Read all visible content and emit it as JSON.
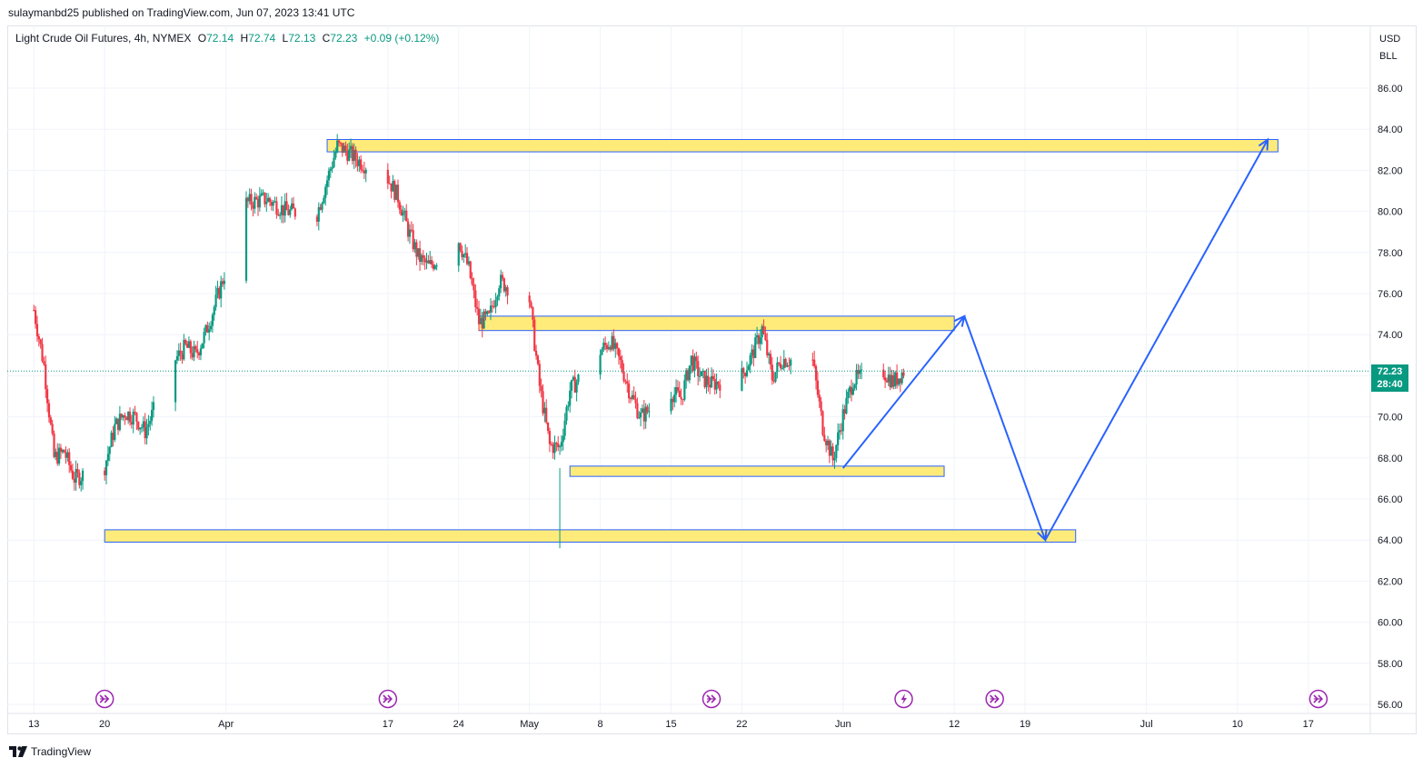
{
  "publish_line": "sulaymanbd25 published on TradingView.com, Jun 07, 2023 13:41 UTC",
  "legend": {
    "symbol": "Light Crude Oil Futures, 4h, NYMEX",
    "o_label": "O",
    "o": "72.14",
    "h_label": "H",
    "h": "72.74",
    "l_label": "L",
    "l": "72.13",
    "c_label": "C",
    "c": "72.23",
    "change": "+0.09 (+0.12%)"
  },
  "price_axis": {
    "currency": "USD",
    "unit": "BLL",
    "current_price": "72.23",
    "countdown": "28:40",
    "ticks": [
      "86.00",
      "84.00",
      "82.00",
      "80.00",
      "78.00",
      "76.00",
      "74.00",
      "72.00",
      "70.00",
      "68.00",
      "66.00",
      "64.00",
      "62.00",
      "60.00",
      "58.00",
      "56.00"
    ]
  },
  "time_axis": {
    "ticks": [
      "13",
      "20",
      "Apr",
      "17",
      "24",
      "May",
      "8",
      "15",
      "22",
      "Jun",
      "12",
      "19",
      "Jul",
      "10",
      "17"
    ]
  },
  "footer": {
    "brand": "TradingView"
  },
  "colors": {
    "up": "#089981",
    "down": "#f23645",
    "zone_fill": "#ffeb7a",
    "zone_border": "#2962ff",
    "arrow": "#2962ff",
    "event_icon": "#9c27b0"
  },
  "chart_data": {
    "type": "candlestick",
    "title": "Light Crude Oil Futures, 4h, NYMEX",
    "ylim": [
      55.5,
      87.5
    ],
    "xlim": [
      "2023-03-12",
      "2023-07-20"
    ],
    "grid": true,
    "approx_close_path": [
      {
        "x": "2023-03-13",
        "y": 75.2
      },
      {
        "x": "2023-03-14",
        "y": 72.5
      },
      {
        "x": "2023-03-15",
        "y": 68.0
      },
      {
        "x": "2023-03-16",
        "y": 68.3
      },
      {
        "x": "2023-03-17",
        "y": 67.0
      },
      {
        "x": "2023-03-20",
        "y": 67.6
      },
      {
        "x": "2023-03-21",
        "y": 69.5
      },
      {
        "x": "2023-03-22",
        "y": 70.2
      },
      {
        "x": "2023-03-23",
        "y": 70.0
      },
      {
        "x": "2023-03-24",
        "y": 69.3
      },
      {
        "x": "2023-03-27",
        "y": 72.8
      },
      {
        "x": "2023-03-28",
        "y": 73.4
      },
      {
        "x": "2023-03-29",
        "y": 73.0
      },
      {
        "x": "2023-03-30",
        "y": 74.1
      },
      {
        "x": "2023-03-31",
        "y": 75.6
      },
      {
        "x": "2023-04-03",
        "y": 80.4
      },
      {
        "x": "2023-04-05",
        "y": 80.6
      },
      {
        "x": "2023-04-07",
        "y": 80.0
      },
      {
        "x": "2023-04-10",
        "y": 79.9
      },
      {
        "x": "2023-04-12",
        "y": 83.2
      },
      {
        "x": "2023-04-13",
        "y": 82.9
      },
      {
        "x": "2023-04-14",
        "y": 82.5
      },
      {
        "x": "2023-04-17",
        "y": 81.6
      },
      {
        "x": "2023-04-18",
        "y": 80.7
      },
      {
        "x": "2023-04-19",
        "y": 79.1
      },
      {
        "x": "2023-04-20",
        "y": 77.8
      },
      {
        "x": "2023-04-21",
        "y": 77.3
      },
      {
        "x": "2023-04-24",
        "y": 78.6
      },
      {
        "x": "2023-04-25",
        "y": 77.2
      },
      {
        "x": "2023-04-26",
        "y": 74.6
      },
      {
        "x": "2023-04-27",
        "y": 74.8
      },
      {
        "x": "2023-04-28",
        "y": 76.6
      },
      {
        "x": "2023-05-01",
        "y": 75.7
      },
      {
        "x": "2023-05-02",
        "y": 71.5
      },
      {
        "x": "2023-05-03",
        "y": 68.6
      },
      {
        "x": "2023-05-04",
        "y": 68.5
      },
      {
        "x": "2023-05-05",
        "y": 71.3
      },
      {
        "x": "2023-05-08",
        "y": 73.2
      },
      {
        "x": "2023-05-09",
        "y": 73.7
      },
      {
        "x": "2023-05-10",
        "y": 72.6
      },
      {
        "x": "2023-05-11",
        "y": 71.1
      },
      {
        "x": "2023-05-12",
        "y": 70.0
      },
      {
        "x": "2023-05-15",
        "y": 71.2
      },
      {
        "x": "2023-05-16",
        "y": 70.9
      },
      {
        "x": "2023-05-17",
        "y": 72.8
      },
      {
        "x": "2023-05-18",
        "y": 71.9
      },
      {
        "x": "2023-05-19",
        "y": 71.6
      },
      {
        "x": "2023-05-22",
        "y": 72.0
      },
      {
        "x": "2023-05-23",
        "y": 73.0
      },
      {
        "x": "2023-05-24",
        "y": 74.3
      },
      {
        "x": "2023-05-25",
        "y": 71.9
      },
      {
        "x": "2023-05-26",
        "y": 72.8
      },
      {
        "x": "2023-05-29",
        "y": 72.7
      },
      {
        "x": "2023-05-30",
        "y": 69.5
      },
      {
        "x": "2023-05-31",
        "y": 67.9
      },
      {
        "x": "2023-06-01",
        "y": 70.1
      },
      {
        "x": "2023-06-02",
        "y": 71.8
      },
      {
        "x": "2023-06-05",
        "y": 72.2
      },
      {
        "x": "2023-06-06",
        "y": 71.7
      },
      {
        "x": "2023-06-07",
        "y": 72.23
      }
    ],
    "last": {
      "open": 72.14,
      "high": 72.74,
      "low": 72.13,
      "close": 72.23
    }
  },
  "drawings": {
    "zones": [
      {
        "from": "2023-04-11",
        "to": "2023-07-14",
        "top": 83.5,
        "bottom": 82.9
      },
      {
        "from": "2023-04-26",
        "to": "2023-06-12",
        "top": 74.9,
        "bottom": 74.2
      },
      {
        "from": "2023-05-05",
        "to": "2023-06-11",
        "top": 67.6,
        "bottom": 67.1
      },
      {
        "from": "2023-03-20",
        "to": "2023-06-24",
        "top": 64.5,
        "bottom": 63.9
      }
    ],
    "projection_path": [
      {
        "x": "2023-06-01",
        "y": 67.5
      },
      {
        "x": "2023-06-13",
        "y": 74.9
      },
      {
        "x": "2023-06-21",
        "y": 64.0
      },
      {
        "x": "2023-07-13",
        "y": 83.5
      }
    ]
  },
  "event_markers": [
    {
      "date": "2023-03-20",
      "icon": "fast-forward-icon"
    },
    {
      "date": "2023-04-17",
      "icon": "fast-forward-icon"
    },
    {
      "date": "2023-05-19",
      "icon": "fast-forward-icon"
    },
    {
      "date": "2023-06-07",
      "icon": "lightning-icon"
    },
    {
      "date": "2023-06-16",
      "icon": "fast-forward-icon"
    },
    {
      "date": "2023-07-18",
      "icon": "fast-forward-icon"
    }
  ]
}
